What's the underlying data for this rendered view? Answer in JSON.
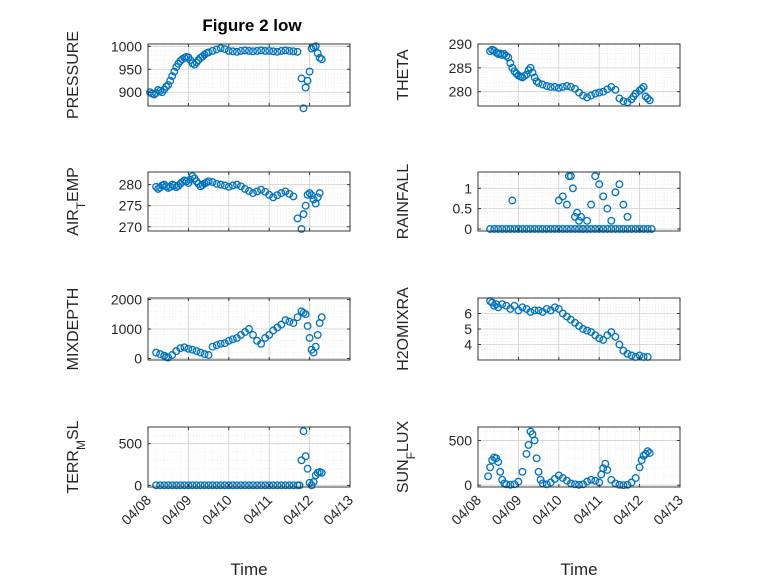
{
  "title": "Figure 2 low",
  "colors": {
    "marker": "#0072BD",
    "axis": "#262626",
    "grid": "#cfcfcf",
    "minor_grid": "#e2e2e2"
  },
  "chart_data": [
    {
      "type": "scatter",
      "panel": "PRESSURE",
      "ylabel": "PRESSURE",
      "ylabel_sub": "",
      "xlim": [
        0,
        5
      ],
      "ylim": [
        870,
        1005
      ],
      "yticks": [
        900,
        950,
        1000
      ],
      "xticks": [
        0,
        1,
        2,
        3,
        4,
        5
      ],
      "xticklabels": [],
      "grid": true,
      "x": [
        0.05,
        0.1,
        0.15,
        0.2,
        0.25,
        0.3,
        0.35,
        0.4,
        0.45,
        0.5,
        0.55,
        0.6,
        0.65,
        0.7,
        0.75,
        0.8,
        0.85,
        0.9,
        0.95,
        1.0,
        1.05,
        1.1,
        1.15,
        1.2,
        1.25,
        1.3,
        1.35,
        1.4,
        1.45,
        1.5,
        1.6,
        1.7,
        1.8,
        1.9,
        2.0,
        2.1,
        2.2,
        2.3,
        2.4,
        2.5,
        2.6,
        2.7,
        2.8,
        2.9,
        3.0,
        3.1,
        3.2,
        3.3,
        3.4,
        3.5,
        3.6,
        3.7,
        3.8,
        3.85,
        3.9,
        3.95,
        4.0,
        4.05,
        4.1,
        4.15,
        4.2,
        4.25,
        4.3
      ],
      "y": [
        900,
        897,
        895,
        898,
        905,
        903,
        900,
        906,
        912,
        916,
        925,
        935,
        945,
        955,
        962,
        968,
        972,
        975,
        977,
        976,
        970,
        963,
        960,
        965,
        970,
        975,
        978,
        982,
        985,
        987,
        990,
        993,
        996,
        994,
        990,
        989,
        988,
        990,
        991,
        990,
        989,
        990,
        991,
        990,
        990,
        989,
        988,
        990,
        991,
        990,
        989,
        988,
        930,
        865,
        910,
        925,
        945,
        995,
        998,
        1000,
        985,
        975,
        972
      ]
    },
    {
      "type": "scatter",
      "panel": "THETA",
      "ylabel": "THETA",
      "ylabel_sub": "",
      "xlim": [
        0,
        5
      ],
      "ylim": [
        277,
        290
      ],
      "yticks": [
        280,
        285,
        290
      ],
      "xticks": [
        0,
        1,
        2,
        3,
        4,
        5
      ],
      "xticklabels": [],
      "grid": true,
      "x": [
        0.3,
        0.35,
        0.4,
        0.45,
        0.5,
        0.55,
        0.6,
        0.65,
        0.7,
        0.75,
        0.8,
        0.85,
        0.9,
        0.95,
        1.0,
        1.05,
        1.1,
        1.15,
        1.2,
        1.25,
        1.3,
        1.35,
        1.4,
        1.45,
        1.5,
        1.6,
        1.7,
        1.8,
        1.9,
        2.0,
        2.1,
        2.2,
        2.3,
        2.4,
        2.5,
        2.6,
        2.7,
        2.8,
        2.9,
        3.0,
        3.1,
        3.2,
        3.3,
        3.4,
        3.5,
        3.6,
        3.7,
        3.8,
        3.85,
        3.9,
        4.0,
        4.05,
        4.1,
        4.15,
        4.2,
        4.25
      ],
      "y": [
        288.5,
        288.8,
        288.6,
        288.2,
        287.9,
        288.0,
        287.7,
        287.9,
        287.5,
        287.2,
        286.0,
        285.0,
        284.3,
        283.8,
        283.4,
        283.2,
        283.0,
        283.3,
        283.6,
        284.5,
        285.0,
        284.0,
        283.0,
        282.2,
        281.8,
        281.5,
        281.2,
        281.0,
        281.0,
        280.8,
        281.0,
        281.2,
        281.0,
        280.6,
        279.8,
        279.2,
        278.8,
        279.2,
        279.6,
        279.8,
        280.0,
        280.5,
        281.0,
        280.4,
        278.6,
        278.0,
        277.8,
        278.4,
        279.0,
        279.6,
        280.2,
        280.6,
        281.0,
        279.0,
        278.6,
        278.2
      ]
    },
    {
      "type": "scatter",
      "panel": "AIR_TEMP",
      "ylabel": "AIR",
      "ylabel_sub": "T",
      "ylabel_rest": "EMP",
      "xlim": [
        0,
        5
      ],
      "ylim": [
        269,
        283
      ],
      "yticks": [
        270,
        275,
        280
      ],
      "xticks": [
        0,
        1,
        2,
        3,
        4,
        5
      ],
      "xticklabels": [],
      "grid": true,
      "x": [
        0.2,
        0.25,
        0.3,
        0.35,
        0.4,
        0.45,
        0.5,
        0.55,
        0.6,
        0.65,
        0.7,
        0.75,
        0.8,
        0.85,
        0.9,
        0.95,
        1.0,
        1.05,
        1.1,
        1.15,
        1.2,
        1.25,
        1.3,
        1.35,
        1.4,
        1.45,
        1.5,
        1.6,
        1.7,
        1.8,
        1.9,
        2.0,
        2.1,
        2.2,
        2.3,
        2.4,
        2.5,
        2.6,
        2.7,
        2.8,
        2.9,
        3.0,
        3.1,
        3.2,
        3.3,
        3.4,
        3.5,
        3.6,
        3.7,
        3.8,
        3.85,
        3.9,
        3.95,
        4.0,
        4.05,
        4.1,
        4.15,
        4.2,
        4.25
      ],
      "y": [
        279.5,
        279.0,
        279.3,
        279.8,
        280.0,
        279.6,
        279.2,
        279.5,
        280.0,
        279.8,
        279.4,
        279.7,
        280.2,
        280.6,
        281.0,
        280.8,
        280.4,
        281.2,
        282.0,
        281.5,
        280.8,
        280.2,
        279.6,
        279.9,
        280.3,
        280.5,
        280.8,
        280.6,
        280.2,
        280.0,
        279.8,
        279.5,
        279.8,
        280.0,
        279.6,
        279.0,
        278.5,
        278.0,
        278.4,
        278.8,
        278.3,
        277.6,
        277.0,
        277.5,
        278.0,
        278.4,
        277.8,
        277.2,
        272.0,
        269.5,
        273.0,
        275.0,
        277.6,
        278.0,
        277.5,
        276.5,
        275.5,
        277.0,
        278.0
      ]
    },
    {
      "type": "scatter",
      "panel": "RAINFALL",
      "ylabel": "RAINFALL",
      "ylabel_sub": "",
      "xlim": [
        0,
        5
      ],
      "ylim": [
        -0.05,
        1.4
      ],
      "yticks": [
        0,
        0.5,
        1
      ],
      "xticks": [
        0,
        1,
        2,
        3,
        4,
        5
      ],
      "xticklabels": [],
      "grid": true,
      "x": [
        0.3,
        0.4,
        0.5,
        0.6,
        0.7,
        0.8,
        0.9,
        1.0,
        1.1,
        1.2,
        1.3,
        1.4,
        1.5,
        1.6,
        1.7,
        1.8,
        1.9,
        2.0,
        2.1,
        2.2,
        2.3,
        2.4,
        2.5,
        2.6,
        2.7,
        2.8,
        2.9,
        3.0,
        3.1,
        3.2,
        3.3,
        3.4,
        3.5,
        3.6,
        3.7,
        3.8,
        3.9,
        4.0,
        4.1,
        4.2,
        4.3,
        0.85,
        2.0,
        2.1,
        2.2,
        2.25,
        2.3,
        2.35,
        2.4,
        2.45,
        2.5,
        2.55,
        2.6,
        2.7,
        2.8,
        2.9,
        3.0,
        3.1,
        3.2,
        3.3,
        3.4,
        3.5,
        3.6,
        3.7
      ],
      "y": [
        0,
        0,
        0,
        0,
        0,
        0,
        0,
        0,
        0,
        0,
        0,
        0,
        0,
        0,
        0,
        0,
        0,
        0,
        0,
        0,
        0,
        0,
        0,
        0,
        0,
        0,
        0,
        0,
        0,
        0,
        0,
        0,
        0,
        0,
        0,
        0,
        0,
        0,
        0,
        0,
        0,
        0.7,
        0.7,
        0.8,
        0.6,
        1.3,
        1.3,
        1.0,
        0.3,
        0.4,
        0.2,
        0.3,
        0.0,
        0.2,
        0.6,
        1.3,
        1.1,
        0.8,
        0.5,
        0.2,
        0.9,
        1.1,
        0.6,
        0.3
      ]
    },
    {
      "type": "scatter",
      "panel": "MIXDEPTH",
      "ylabel": "MIXDEPTH",
      "ylabel_sub": "",
      "xlim": [
        0,
        5
      ],
      "ylim": [
        -50,
        2050
      ],
      "yticks": [
        0,
        1000,
        2000
      ],
      "xticks": [
        0,
        1,
        2,
        3,
        4,
        5
      ],
      "xticklabels": [],
      "grid": true,
      "x": [
        0.2,
        0.3,
        0.4,
        0.45,
        0.5,
        0.6,
        0.7,
        0.8,
        0.9,
        1.0,
        1.1,
        1.2,
        1.3,
        1.4,
        1.5,
        1.6,
        1.7,
        1.8,
        1.9,
        2.0,
        2.1,
        2.2,
        2.3,
        2.4,
        2.5,
        2.6,
        2.7,
        2.8,
        2.9,
        3.0,
        3.1,
        3.2,
        3.3,
        3.4,
        3.5,
        3.6,
        3.7,
        3.8,
        3.85,
        3.9,
        3.95,
        4.0,
        4.05,
        4.1,
        4.15,
        4.2,
        4.25,
        4.3
      ],
      "y": [
        200,
        150,
        100,
        50,
        30,
        120,
        250,
        350,
        380,
        330,
        300,
        250,
        200,
        150,
        120,
        400,
        450,
        500,
        520,
        600,
        650,
        700,
        800,
        900,
        1000,
        800,
        600,
        500,
        700,
        800,
        950,
        1050,
        1150,
        1300,
        1250,
        1200,
        1400,
        1600,
        1550,
        1500,
        1100,
        700,
        300,
        200,
        400,
        800,
        1200,
        1400
      ]
    },
    {
      "type": "scatter",
      "panel": "H2OMIXRA",
      "ylabel": "H2OMIXRA",
      "ylabel_sub": "",
      "xlim": [
        0,
        5
      ],
      "ylim": [
        3,
        7
      ],
      "yticks": [
        4,
        5,
        6
      ],
      "xticks": [
        0,
        1,
        2,
        3,
        4,
        5
      ],
      "xticklabels": [],
      "grid": true,
      "x": [
        0.3,
        0.35,
        0.4,
        0.45,
        0.5,
        0.6,
        0.7,
        0.8,
        0.9,
        1.0,
        1.1,
        1.2,
        1.3,
        1.4,
        1.5,
        1.6,
        1.7,
        1.8,
        1.9,
        2.0,
        2.1,
        2.2,
        2.3,
        2.4,
        2.5,
        2.6,
        2.7,
        2.8,
        2.9,
        3.0,
        3.1,
        3.2,
        3.3,
        3.4,
        3.5,
        3.6,
        3.7,
        3.8,
        3.9,
        4.0,
        4.1,
        4.2
      ],
      "y": [
        6.8,
        6.7,
        6.5,
        6.6,
        6.4,
        6.6,
        6.5,
        6.3,
        6.5,
        6.2,
        6.4,
        6.3,
        6.1,
        6.2,
        6.2,
        6.1,
        6.3,
        6.2,
        6.4,
        6.3,
        6.0,
        5.8,
        5.6,
        5.4,
        5.2,
        5.0,
        4.9,
        4.8,
        4.6,
        4.4,
        4.3,
        4.6,
        4.8,
        4.5,
        4.0,
        3.6,
        3.4,
        3.3,
        3.2,
        3.3,
        3.2,
        3.2
      ]
    },
    {
      "type": "scatter",
      "panel": "TERR_MSL",
      "ylabel": "TERR",
      "ylabel_sub": "M",
      "ylabel_rest": "SL",
      "xlim": [
        0,
        5
      ],
      "ylim": [
        -20,
        700
      ],
      "yticks": [
        0,
        500
      ],
      "xticks": [
        0,
        1,
        2,
        3,
        4,
        5
      ],
      "xticklabels": [
        "04/08",
        "04/09",
        "04/10",
        "04/11",
        "04/12",
        "04/13"
      ],
      "xlabel": "Time",
      "grid": true,
      "x": [
        0.2,
        0.3,
        0.4,
        0.5,
        0.6,
        0.7,
        0.8,
        0.9,
        1.0,
        1.1,
        1.2,
        1.3,
        1.4,
        1.5,
        1.6,
        1.7,
        1.8,
        1.9,
        2.0,
        2.1,
        2.2,
        2.3,
        2.4,
        2.5,
        2.6,
        2.7,
        2.8,
        2.9,
        3.0,
        3.1,
        3.2,
        3.3,
        3.4,
        3.5,
        3.6,
        3.7,
        3.75,
        3.8,
        3.85,
        3.9,
        3.95,
        4.0,
        4.05,
        4.1,
        4.15,
        4.2,
        4.25,
        4.3
      ],
      "y": [
        0,
        0,
        0,
        0,
        0,
        0,
        0,
        0,
        0,
        0,
        0,
        0,
        0,
        0,
        0,
        0,
        0,
        0,
        0,
        0,
        0,
        0,
        0,
        0,
        0,
        0,
        0,
        0,
        0,
        0,
        0,
        0,
        0,
        0,
        0,
        0,
        0,
        300,
        650,
        350,
        200,
        30,
        0,
        40,
        120,
        150,
        160,
        150
      ]
    },
    {
      "type": "scatter",
      "panel": "SUN_FLUX",
      "ylabel": "SUN",
      "ylabel_sub": "F",
      "ylabel_rest": "LUX",
      "xlim": [
        0,
        5
      ],
      "ylim": [
        -20,
        650
      ],
      "yticks": [
        0,
        500
      ],
      "xticks": [
        0,
        1,
        2,
        3,
        4,
        5
      ],
      "xticklabels": [
        "04/08",
        "04/09",
        "04/10",
        "04/11",
        "04/12",
        "04/13"
      ],
      "xlabel": "Time",
      "grid": true,
      "x": [
        0.25,
        0.3,
        0.35,
        0.4,
        0.45,
        0.5,
        0.55,
        0.6,
        0.65,
        0.7,
        0.8,
        0.9,
        1.0,
        1.1,
        1.2,
        1.25,
        1.3,
        1.35,
        1.4,
        1.45,
        1.5,
        1.55,
        1.6,
        1.7,
        1.8,
        1.9,
        2.0,
        2.1,
        2.2,
        2.3,
        2.4,
        2.5,
        2.6,
        2.7,
        2.8,
        2.9,
        3.0,
        3.05,
        3.1,
        3.15,
        3.2,
        3.3,
        3.4,
        3.5,
        3.6,
        3.7,
        3.8,
        3.9,
        4.0,
        4.05,
        4.1,
        4.15,
        4.2,
        4.25
      ],
      "y": [
        100,
        200,
        280,
        310,
        300,
        260,
        150,
        60,
        20,
        10,
        5,
        10,
        40,
        150,
        350,
        450,
        600,
        570,
        500,
        300,
        150,
        60,
        20,
        10,
        30,
        70,
        110,
        80,
        50,
        20,
        10,
        5,
        10,
        40,
        60,
        50,
        30,
        120,
        190,
        240,
        170,
        60,
        20,
        5,
        0,
        5,
        30,
        80,
        200,
        280,
        330,
        350,
        380,
        360
      ]
    }
  ]
}
